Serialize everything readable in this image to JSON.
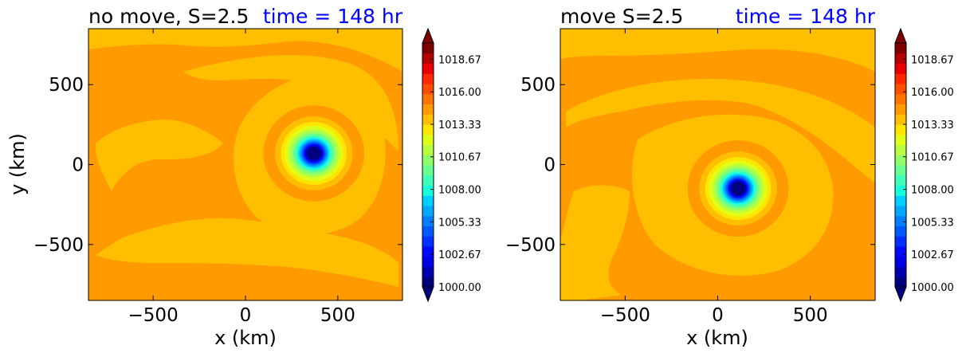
{
  "colors": {
    "levels": [
      "#00007f",
      "#0000b0",
      "#0000e8",
      "#0008ff",
      "#0030ff",
      "#0058ff",
      "#0080ff",
      "#00a8ff",
      "#00d0ff",
      "#18ffe0",
      "#40ffb8",
      "#68ff90",
      "#90ff68",
      "#b8ff40",
      "#e0ff18",
      "#ffe600",
      "#ffbf00",
      "#ff9a00",
      "#ff7500",
      "#ff4e00",
      "#ff2800",
      "#e80000",
      "#b40000",
      "#7f0000"
    ],
    "under": "#00007f",
    "over": "#7f0000"
  },
  "chart_data": [
    {
      "type": "heatmap",
      "title": "no move, S=2.5",
      "time_label": "time = 148 hr",
      "time_color": "#0000ff",
      "xlabel": "x (km)",
      "ylabel": "y (km)",
      "xlim": [
        -850,
        850
      ],
      "ylim": [
        -850,
        850
      ],
      "xticks": [
        -500,
        0,
        500
      ],
      "yticks": [
        -500,
        0,
        500
      ],
      "xtick_labels": [
        "−500",
        "0",
        "500"
      ],
      "ytick_labels": [
        "−500",
        "0",
        "500"
      ],
      "background_value": 1016.8,
      "vortex_center_km": [
        370,
        70
      ],
      "center_value": 1000.0,
      "colorbar": {
        "min": 1000.0,
        "max": 1020.0,
        "ticks": [
          1000.0,
          1002.67,
          1005.33,
          1008.0,
          1010.67,
          1013.33,
          1016.0,
          1018.67
        ],
        "tick_labels": [
          "1000.00",
          "1002.67",
          "1005.33",
          "1008.00",
          "1010.67",
          "1013.33",
          "1016.00",
          "1018.67"
        ],
        "extend": "both"
      }
    },
    {
      "type": "heatmap",
      "title": "move S=2.5",
      "time_label": "time = 148 hr",
      "time_color": "#0000ff",
      "xlabel": "x (km)",
      "ylabel": "",
      "xlim": [
        -850,
        850
      ],
      "ylim": [
        -850,
        850
      ],
      "xticks": [
        -500,
        0,
        500
      ],
      "yticks": [
        -500,
        0,
        500
      ],
      "xtick_labels": [
        "−500",
        "0",
        "500"
      ],
      "ytick_labels": [
        "−500",
        "0",
        "500"
      ],
      "background_value": 1016.8,
      "vortex_center_km": [
        110,
        -150
      ],
      "center_value": 1000.0,
      "colorbar": {
        "min": 1000.0,
        "max": 1020.0,
        "ticks": [
          1000.0,
          1002.67,
          1005.33,
          1008.0,
          1010.67,
          1013.33,
          1016.0,
          1018.67
        ],
        "tick_labels": [
          "1000.00",
          "1002.67",
          "1005.33",
          "1008.00",
          "1010.67",
          "1013.33",
          "1016.00",
          "1018.67"
        ],
        "extend": "both"
      }
    }
  ]
}
